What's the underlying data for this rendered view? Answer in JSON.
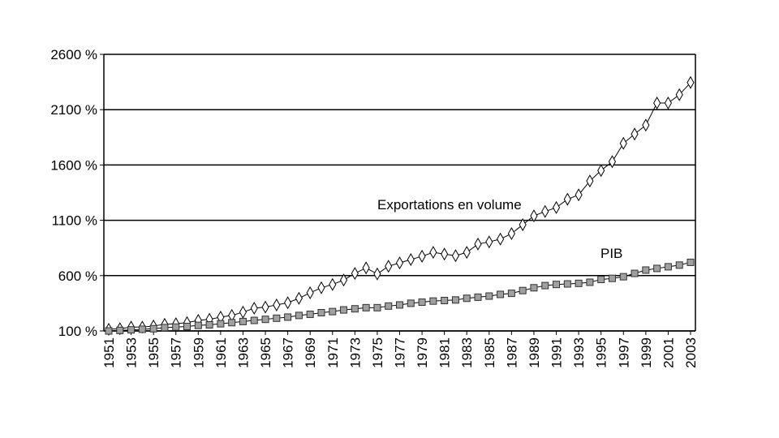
{
  "chart_data": {
    "type": "line",
    "x": [
      1951,
      1952,
      1953,
      1954,
      1955,
      1956,
      1957,
      1958,
      1959,
      1960,
      1961,
      1962,
      1963,
      1964,
      1965,
      1966,
      1967,
      1968,
      1969,
      1970,
      1971,
      1972,
      1973,
      1974,
      1975,
      1976,
      1977,
      1978,
      1979,
      1980,
      1981,
      1982,
      1983,
      1984,
      1985,
      1986,
      1987,
      1988,
      1989,
      1990,
      1991,
      1992,
      1993,
      1994,
      1995,
      1996,
      1997,
      1998,
      1999,
      2000,
      2001,
      2002,
      2003
    ],
    "series": [
      {
        "name": "Exportations en volume",
        "color": "#000000",
        "marker": "diamond",
        "values": [
          115,
          120,
          135,
          135,
          145,
          160,
          165,
          175,
          195,
          205,
          225,
          240,
          270,
          305,
          315,
          335,
          355,
          395,
          445,
          490,
          520,
          560,
          620,
          670,
          615,
          685,
          715,
          745,
          775,
          810,
          795,
          780,
          810,
          885,
          905,
          930,
          980,
          1060,
          1140,
          1180,
          1215,
          1290,
          1330,
          1455,
          1550,
          1630,
          1795,
          1880,
          1960,
          2160,
          2160,
          2235,
          2345
        ]
      },
      {
        "name": "PIB",
        "color": "#000000",
        "marker": "square",
        "values": [
          100,
          105,
          110,
          115,
          120,
          130,
          135,
          140,
          150,
          155,
          165,
          175,
          185,
          195,
          205,
          215,
          225,
          240,
          250,
          265,
          275,
          290,
          300,
          310,
          310,
          325,
          335,
          350,
          360,
          370,
          375,
          380,
          395,
          405,
          415,
          430,
          440,
          465,
          490,
          510,
          520,
          525,
          530,
          540,
          565,
          575,
          590,
          620,
          650,
          665,
          680,
          695,
          720
        ]
      }
    ],
    "xlim": [
      1951,
      2003
    ],
    "xticks": [
      1951,
      1953,
      1955,
      1957,
      1959,
      1961,
      1963,
      1965,
      1967,
      1969,
      1971,
      1973,
      1975,
      1977,
      1979,
      1981,
      1983,
      1985,
      1987,
      1989,
      1991,
      1993,
      1995,
      1997,
      1999,
      2001,
      2003
    ],
    "ylim": [
      100,
      2600
    ],
    "yticks": [
      {
        "value": 100,
        "label": "100 %"
      },
      {
        "value": 600,
        "label": "600 %"
      },
      {
        "value": 1100,
        "label": "1100 %"
      },
      {
        "value": 1600,
        "label": "1600 %"
      },
      {
        "value": 2100,
        "label": "2100 %"
      },
      {
        "value": 2600,
        "label": "2600 %"
      }
    ],
    "grid": true
  }
}
